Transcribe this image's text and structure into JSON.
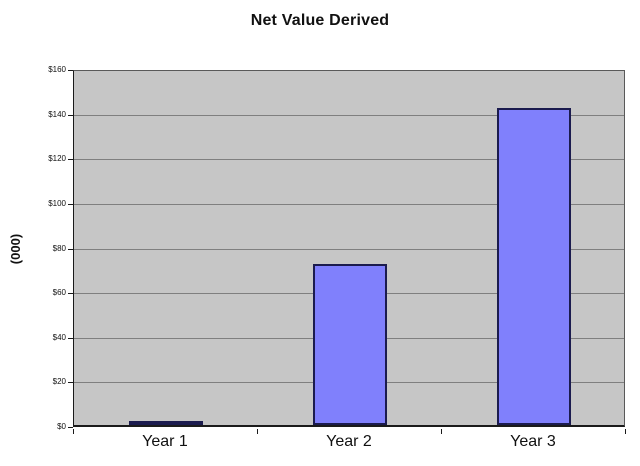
{
  "chart_data": {
    "type": "bar",
    "title": "Net Value Derived",
    "ylabel": "(000)",
    "xlabel": "",
    "categories": [
      "Year 1",
      "Year 2",
      "Year 3"
    ],
    "values": [
      2,
      72,
      142
    ],
    "ylim": [
      0,
      160
    ],
    "ytick_step": 20,
    "ytick_labels": [
      "$0",
      "$20",
      "$40",
      "$60",
      "$80",
      "$100",
      "$120",
      "$140",
      "$160"
    ],
    "grid": true,
    "legend": "none",
    "colors": {
      "bar_fill": "#8080fc",
      "bar_border": "#1b1b4e",
      "plot_background": "#c6c6c6",
      "gridline": "#7f7f7f",
      "axis_line": "#1a1a1a",
      "plot_border": "#595959",
      "text": "#111111",
      "page_background": "#ffffff"
    }
  }
}
